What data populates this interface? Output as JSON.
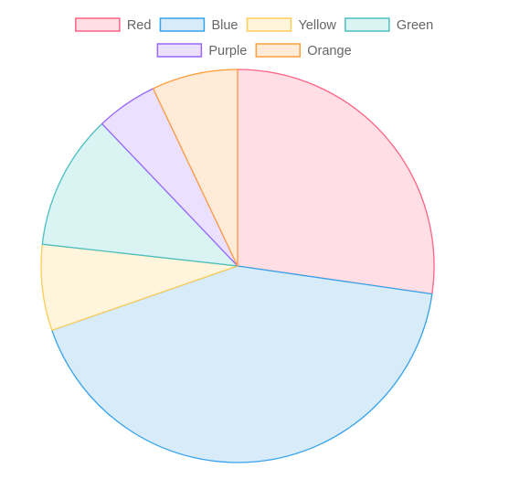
{
  "chart_data": {
    "type": "pie",
    "title": "",
    "legend": "top",
    "categories": [
      "Red",
      "Blue",
      "Yellow",
      "Green",
      "Purple",
      "Orange"
    ],
    "values": [
      27,
      42,
      7,
      11,
      5,
      7
    ],
    "colors": {
      "fill": [
        "#ffdfe5",
        "#d7ebf9",
        "#fff4dc",
        "#daf3f3",
        "#ebe0fe",
        "#ffebd8"
      ],
      "border": [
        "#ff6384",
        "#36a2eb",
        "#ffcd56",
        "#4bc0c0",
        "#9966ff",
        "#ff9f40"
      ]
    }
  }
}
